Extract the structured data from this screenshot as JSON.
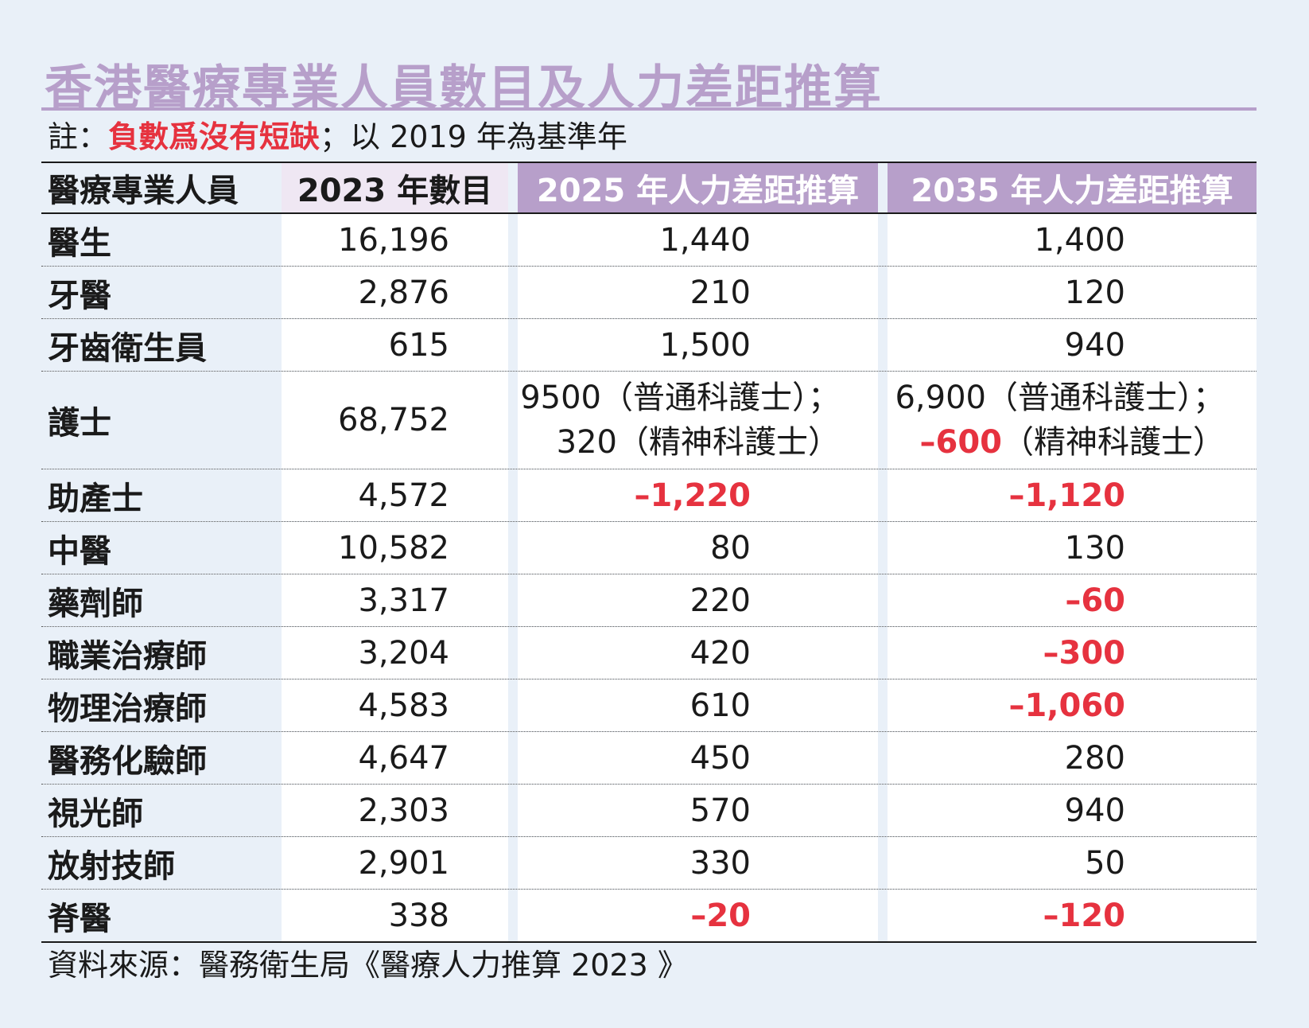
{
  "title": "香港醫療專業人員數目及人力差距推算",
  "note": {
    "prefix": "註：",
    "highlight": "負數爲沒有短缺",
    "suffix": "；以 2019 年為基準年"
  },
  "table": {
    "headers": [
      "醫療專業人員",
      "2023 年數目",
      "2025 年人力差距推算",
      "2035 年人力差距推算"
    ],
    "rows": [
      {
        "name": "醫生",
        "count": "16,196",
        "gap2025": "1,440",
        "gap2035": "1,400"
      },
      {
        "name": "牙醫",
        "count": "2,876",
        "gap2025": "210",
        "gap2035": "120"
      },
      {
        "name": "牙齒衛生員",
        "count": "615",
        "gap2025": "1,500",
        "gap2035": "940"
      },
      {
        "name": "護士",
        "count": "68,752",
        "gap2025_line1": "9500（普通科護士）；",
        "gap2025_line2": "320（精神科護士）",
        "gap2035_line1": "6,900（普通科護士）；",
        "gap2035_line2_value": "–600",
        "gap2035_line2_text": "（精神科護士）"
      },
      {
        "name": "助產士",
        "count": "4,572",
        "gap2025": "–1,220",
        "gap2025_neg": true,
        "gap2035": "–1,120",
        "gap2035_neg": true
      },
      {
        "name": "中醫",
        "count": "10,582",
        "gap2025": "80",
        "gap2035": "130"
      },
      {
        "name": "藥劑師",
        "count": "3,317",
        "gap2025": "220",
        "gap2035": "–60",
        "gap2035_neg": true
      },
      {
        "name": "職業治療師",
        "count": "3,204",
        "gap2025": "420",
        "gap2035": "–300",
        "gap2035_neg": true
      },
      {
        "name": "物理治療師",
        "count": "4,583",
        "gap2025": "610",
        "gap2035": "–1,060",
        "gap2035_neg": true
      },
      {
        "name": "醫務化驗師",
        "count": "4,647",
        "gap2025": "450",
        "gap2035": "280"
      },
      {
        "name": "視光師",
        "count": "2,303",
        "gap2025": "570",
        "gap2035": "940"
      },
      {
        "name": "放射技師",
        "count": "2,901",
        "gap2025": "330",
        "gap2035": "50"
      },
      {
        "name": "脊醫",
        "count": "338",
        "gap2025": "–20",
        "gap2025_neg": true,
        "gap2035": "–120",
        "gap2035_neg": true
      }
    ]
  },
  "source": "資料來源：醫務衛生局《醫療人力推算 2023 》",
  "colors": {
    "accent": "#b79fca",
    "negative": "#e6323f",
    "background": "#e9f0f8"
  }
}
